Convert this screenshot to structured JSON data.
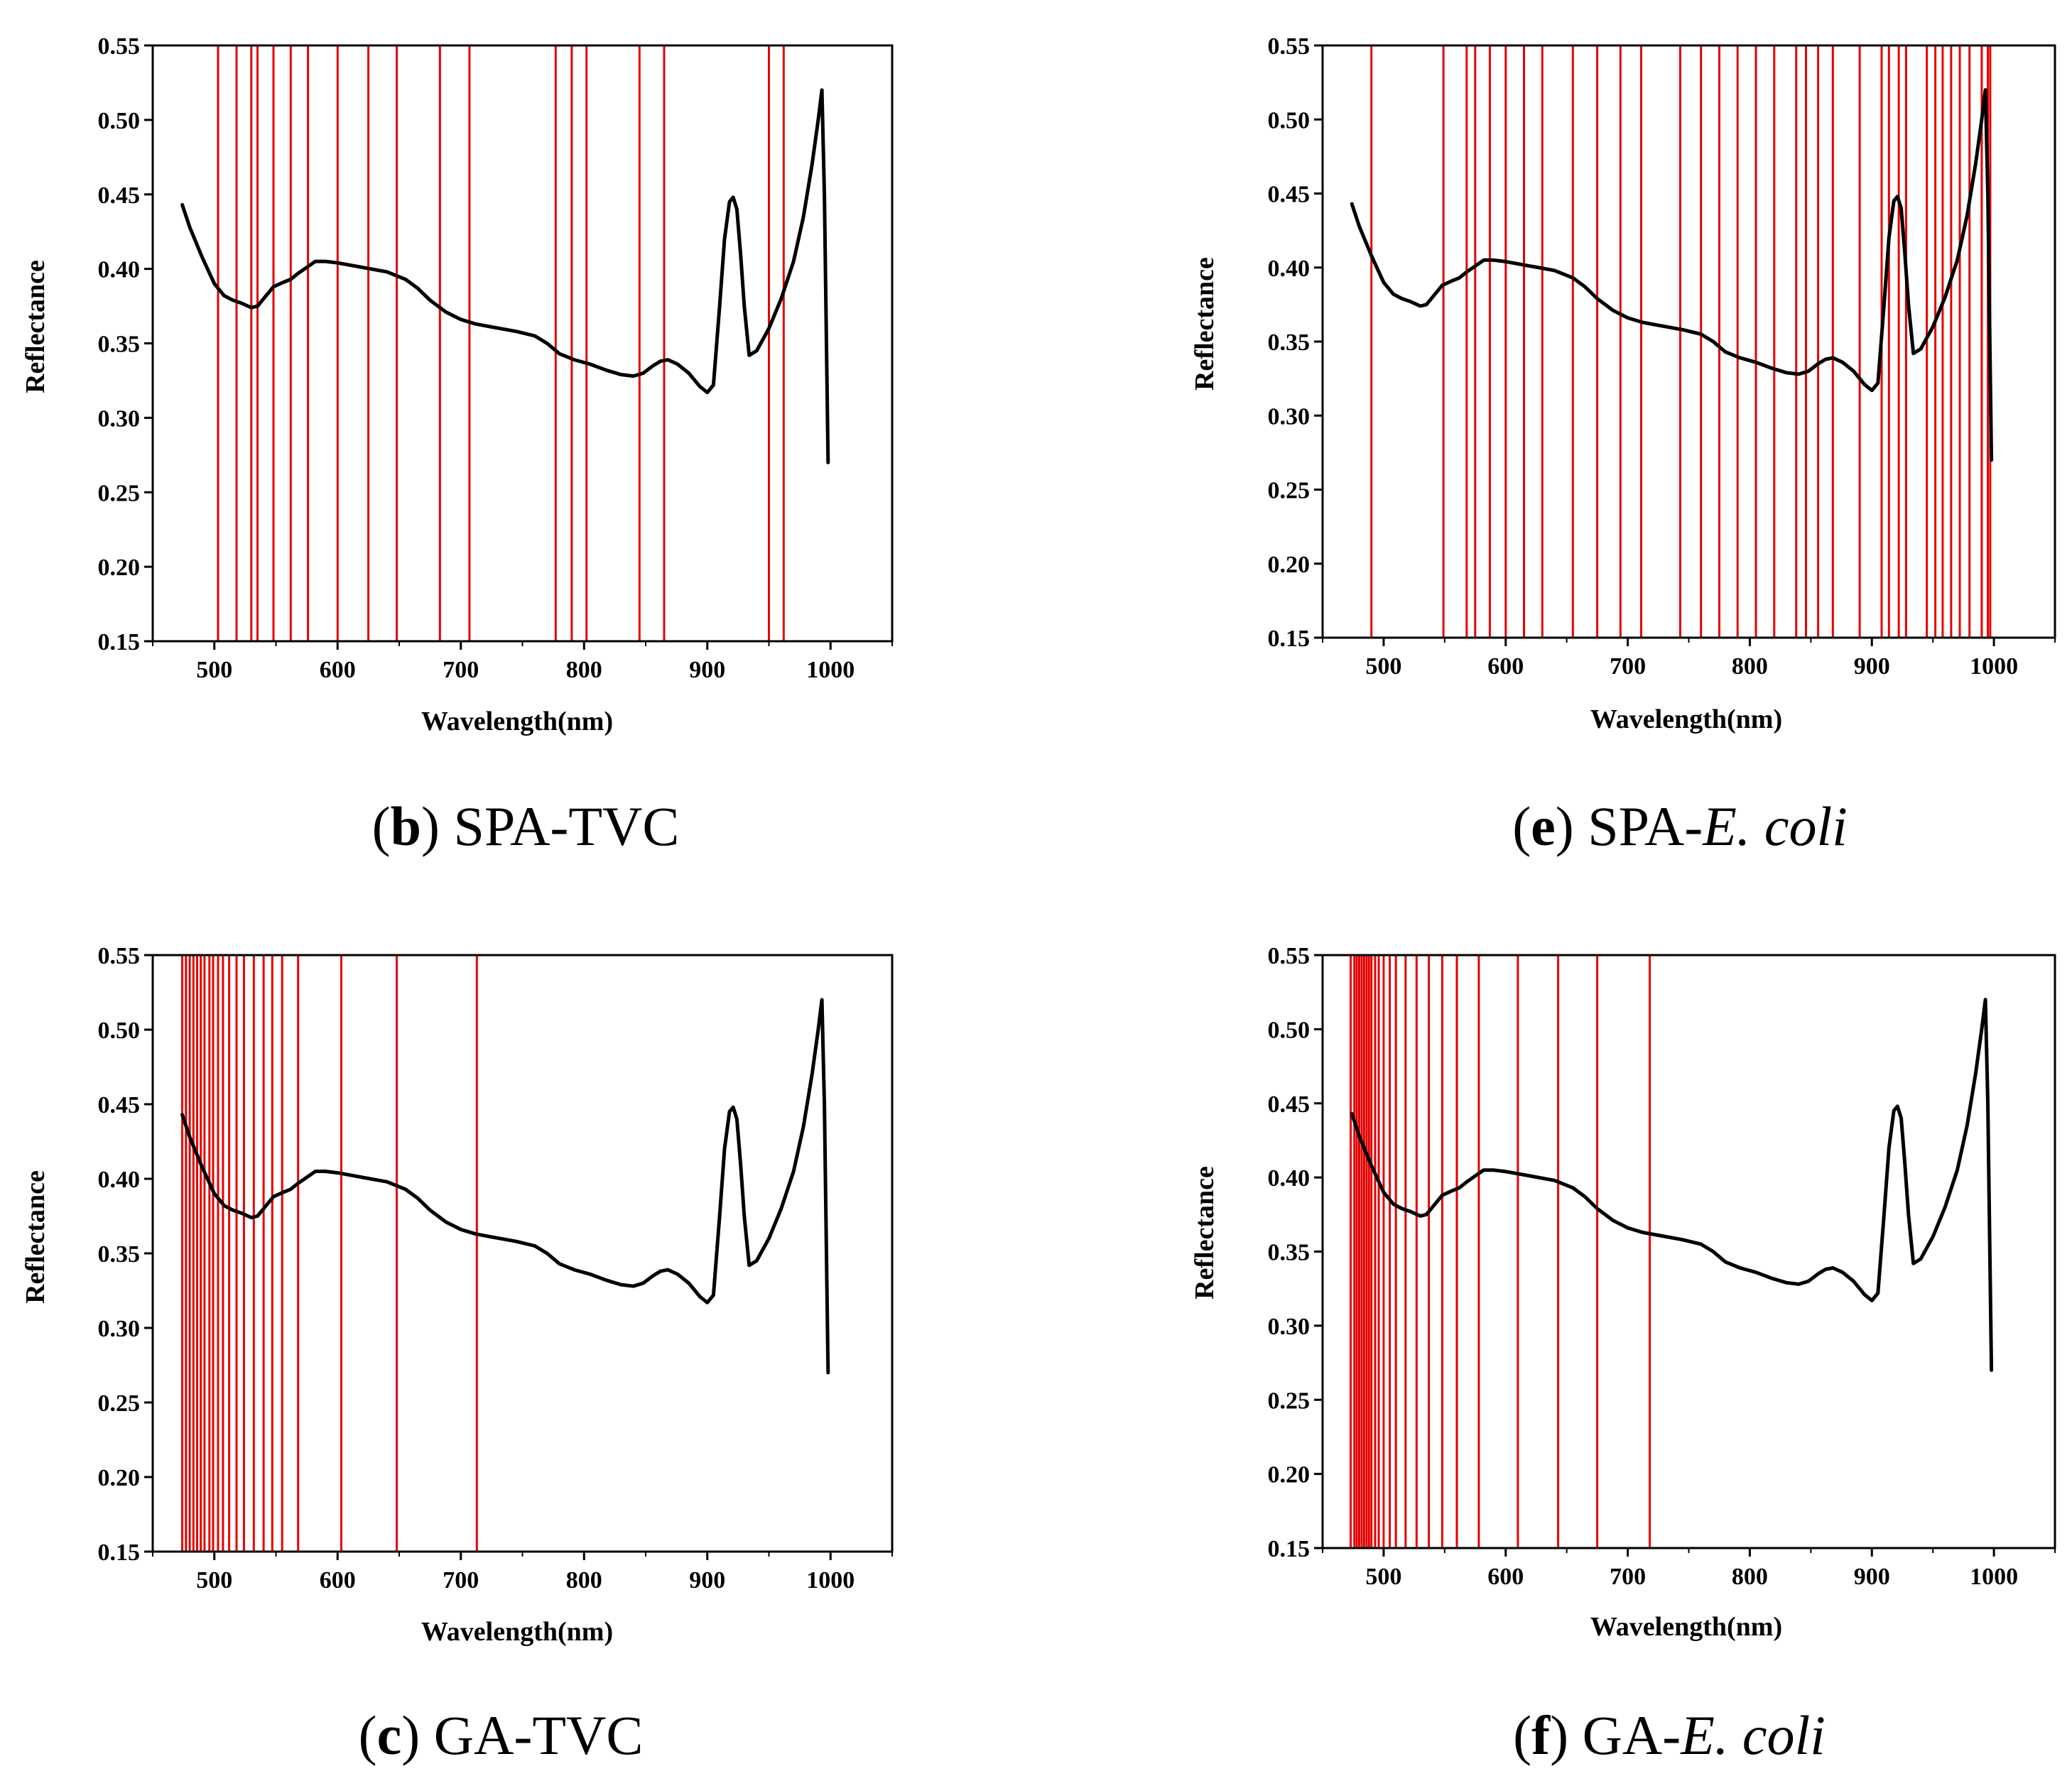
{
  "figure": {
    "colors": {
      "spectrum": "#000000",
      "selected_band": "#e60000",
      "frame": "#000000"
    }
  },
  "chart_data": [
    {
      "id": "b",
      "type": "line",
      "caption": {
        "letter": "b",
        "prefix": "SPA-",
        "name": "TVC",
        "name_italic": false
      },
      "xlabel": "Wavelength(nm)",
      "ylabel": "Reflectance",
      "xlim": [
        450,
        1050
      ],
      "ylim": [
        0.15,
        0.55
      ],
      "xticks": [
        500,
        600,
        700,
        800,
        900,
        1000
      ],
      "xtick_labels": [
        "500",
        "600",
        "700",
        "800",
        "900",
        "1000"
      ],
      "yticks": [
        0.15,
        0.2,
        0.25,
        0.3,
        0.35,
        0.4,
        0.45,
        0.5,
        0.55
      ],
      "ytick_labels": [
        "0.15",
        "0.20",
        "0.25",
        "0.30",
        "0.35",
        "0.40",
        "0.45",
        "0.50",
        "0.55"
      ],
      "selected_wavelengths": [
        503,
        518,
        530,
        535,
        548,
        562,
        576,
        600,
        625,
        648,
        683,
        707,
        777,
        790,
        802,
        845,
        865,
        950,
        962
      ]
    },
    {
      "id": "e",
      "type": "line",
      "caption": {
        "letter": "e",
        "prefix": "SPA-",
        "name": "E. coli",
        "name_italic": true
      },
      "xlabel": "Wavelength(nm)",
      "ylabel": "Reflectance",
      "xlim": [
        450,
        1050
      ],
      "ylim": [
        0.15,
        0.55
      ],
      "xticks": [
        500,
        600,
        700,
        800,
        900,
        1000
      ],
      "xtick_labels": [
        "500",
        "600",
        "700",
        "800",
        "900",
        "1000"
      ],
      "yticks": [
        0.15,
        0.2,
        0.25,
        0.3,
        0.35,
        0.4,
        0.45,
        0.5,
        0.55
      ],
      "ytick_labels": [
        "0.15",
        "0.20",
        "0.25",
        "0.30",
        "0.35",
        "0.40",
        "0.45",
        "0.50",
        "0.55"
      ],
      "selected_wavelengths": [
        490,
        549,
        568,
        575,
        587,
        600,
        615,
        630,
        655,
        675,
        694,
        711,
        743,
        760,
        775,
        790,
        805,
        820,
        838,
        846,
        856,
        868,
        890,
        908,
        914,
        922,
        928,
        945,
        952,
        958,
        965,
        972,
        980,
        990,
        995,
        997
      ]
    },
    {
      "id": "c",
      "type": "line",
      "caption": {
        "letter": "c",
        "prefix": "GA-",
        "name": "TVC",
        "name_italic": false
      },
      "xlabel": "Wavelength(nm)",
      "ylabel": "Reflectance",
      "xlim": [
        450,
        1050
      ],
      "ylim": [
        0.15,
        0.55
      ],
      "xticks": [
        500,
        600,
        700,
        800,
        900,
        1000
      ],
      "xtick_labels": [
        "500",
        "600",
        "700",
        "800",
        "900",
        "1000"
      ],
      "yticks": [
        0.15,
        0.2,
        0.25,
        0.3,
        0.35,
        0.4,
        0.45,
        0.5,
        0.55
      ],
      "ytick_labels": [
        "0.15",
        "0.20",
        "0.25",
        "0.30",
        "0.35",
        "0.40",
        "0.45",
        "0.50",
        "0.55"
      ],
      "selected_wavelengths": [
        474,
        477,
        480,
        483,
        486,
        489,
        492,
        496,
        499,
        503,
        507,
        512,
        518,
        524,
        532,
        540,
        547,
        555,
        568,
        603,
        648,
        713
      ]
    },
    {
      "id": "f",
      "type": "line",
      "caption": {
        "letter": "f",
        "prefix": "GA-",
        "name": "E. coli",
        "name_italic": true
      },
      "xlabel": "Wavelength(nm)",
      "ylabel": "Reflectance",
      "xlim": [
        450,
        1050
      ],
      "ylim": [
        0.15,
        0.55
      ],
      "xticks": [
        500,
        600,
        700,
        800,
        900,
        1000
      ],
      "xtick_labels": [
        "500",
        "600",
        "700",
        "800",
        "900",
        "1000"
      ],
      "yticks": [
        0.15,
        0.2,
        0.25,
        0.3,
        0.35,
        0.4,
        0.45,
        0.5,
        0.55
      ],
      "ytick_labels": [
        "0.15",
        "0.20",
        "0.25",
        "0.30",
        "0.35",
        "0.40",
        "0.45",
        "0.50",
        "0.55"
      ],
      "selected_wavelengths": [
        473,
        476,
        478,
        480,
        482,
        484,
        486,
        488,
        490,
        493,
        496,
        500,
        505,
        510,
        518,
        527,
        537,
        548,
        560,
        578,
        610,
        643,
        675,
        718
      ]
    }
  ],
  "spectrum": {
    "wavelength": [
      474,
      480,
      490,
      500,
      508,
      515,
      522,
      530,
      535,
      542,
      548,
      556,
      562,
      568,
      575,
      582,
      590,
      600,
      620,
      640,
      655,
      665,
      675,
      688,
      700,
      712,
      725,
      745,
      760,
      770,
      780,
      792,
      805,
      818,
      830,
      840,
      848,
      856,
      862,
      868,
      876,
      885,
      894,
      900,
      905,
      910,
      914,
      918,
      921,
      924,
      927,
      930,
      934,
      940,
      950,
      960,
      970,
      978,
      985,
      990,
      993,
      995,
      998
    ],
    "reflectance": [
      0.443,
      0.428,
      0.408,
      0.39,
      0.382,
      0.379,
      0.377,
      0.374,
      0.375,
      0.382,
      0.388,
      0.391,
      0.393,
      0.397,
      0.401,
      0.405,
      0.405,
      0.404,
      0.401,
      0.398,
      0.393,
      0.387,
      0.379,
      0.371,
      0.366,
      0.363,
      0.361,
      0.358,
      0.355,
      0.35,
      0.343,
      0.339,
      0.336,
      0.332,
      0.329,
      0.328,
      0.33,
      0.335,
      0.338,
      0.339,
      0.336,
      0.33,
      0.321,
      0.317,
      0.322,
      0.375,
      0.42,
      0.445,
      0.448,
      0.44,
      0.41,
      0.375,
      0.342,
      0.345,
      0.36,
      0.38,
      0.405,
      0.435,
      0.47,
      0.5,
      0.52,
      0.45,
      0.27
    ]
  }
}
